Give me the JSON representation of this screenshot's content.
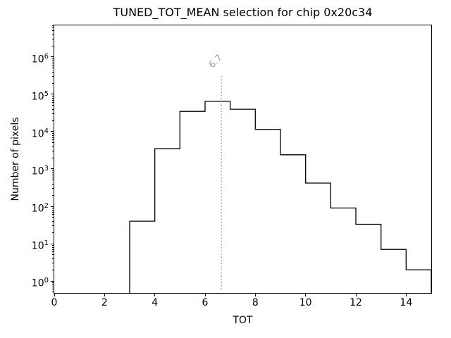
{
  "chart_data": {
    "type": "bar",
    "subtype": "step-histogram",
    "title": "TUNED_TOT_MEAN selection for chip 0x20c34",
    "xlabel": "TOT",
    "ylabel": "Number of pixels",
    "yscale": "log",
    "grid": false,
    "legend": null,
    "xlim": [
      0,
      15
    ],
    "ylim": [
      0.478,
      7060000
    ],
    "x_ticks": [
      0,
      2,
      4,
      6,
      8,
      10,
      12,
      14
    ],
    "y_tick_base": "10",
    "y_tick_exponents": [
      0,
      1,
      2,
      3,
      4,
      5,
      6
    ],
    "bin_edges": [
      3,
      4,
      5,
      6,
      7,
      8,
      9,
      10,
      11,
      12,
      13,
      14,
      15
    ],
    "counts": [
      40,
      3500,
      35000,
      65000,
      40000,
      11500,
      2400,
      420,
      90,
      33,
      7,
      2
    ],
    "line_color": "#000000",
    "vline": {
      "x": 6.65,
      "label": "6.7",
      "color": "#9e9e9e",
      "style": "dotted"
    }
  }
}
